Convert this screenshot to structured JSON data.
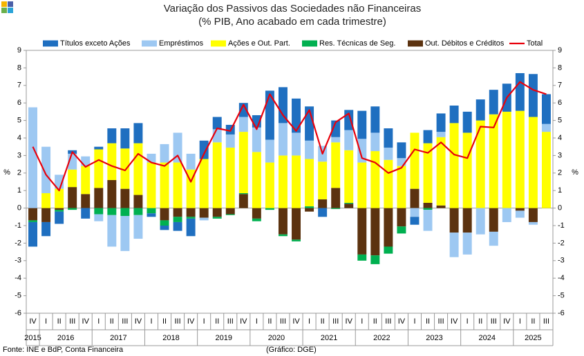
{
  "chart_data": {
    "type": "bar",
    "stacked": true,
    "title": "Variação dos Passivos das Sociedades não Financeiras",
    "subtitle": "(% PIB, Ano acabado em cada trimestre)",
    "ylabel": "%",
    "y2label": "%",
    "source": "Fonte: INE e BdP, Conta Financeira",
    "note": "(Gráfico: DGE)",
    "categories": [
      "IV",
      "I",
      "II",
      "III",
      "IV",
      "I",
      "II",
      "III",
      "IV",
      "I",
      "II",
      "III",
      "IV",
      "I",
      "II",
      "III",
      "IV",
      "I",
      "II",
      "III",
      "IV",
      "I",
      "II",
      "III",
      "IV",
      "I",
      "II",
      "III",
      "IV",
      "I",
      "II",
      "III",
      "IV",
      "I",
      "II",
      "III",
      "IV",
      "I",
      "II",
      "III"
    ],
    "category_groups": [
      {
        "name": "2015",
        "count": 1
      },
      {
        "name": "2016",
        "count": 4
      },
      {
        "name": "2017",
        "count": 4
      },
      {
        "name": "2018",
        "count": 4
      },
      {
        "name": "2019",
        "count": 4
      },
      {
        "name": "2020",
        "count": 4
      },
      {
        "name": "2021",
        "count": 4
      },
      {
        "name": "2022",
        "count": 4
      },
      {
        "name": "2023",
        "count": 4
      },
      {
        "name": "2024",
        "count": 4
      },
      {
        "name": "2025",
        "count": 3
      }
    ],
    "ylim": [
      -6,
      9
    ],
    "yticks": [
      -6,
      -5,
      -4,
      -3,
      -2,
      -1,
      0,
      1,
      2,
      3,
      4,
      5,
      6,
      7,
      8,
      9
    ],
    "y2lim": [
      -6,
      9
    ],
    "y2ticks": [
      -6,
      -5,
      -4,
      -3,
      -2,
      -1,
      0,
      1,
      2,
      3,
      4,
      5,
      6,
      7,
      8,
      9
    ],
    "legend": "top",
    "series": [
      {
        "name": "Títulos exceto Ações",
        "type": "bar",
        "color": "#1f6fc0",
        "values": [
          -1.4,
          -0.8,
          -0.7,
          0.2,
          -0.6,
          0.15,
          0.85,
          1.15,
          1.15,
          -0.2,
          -0.25,
          -0.5,
          -1.0,
          1.05,
          0.7,
          0.55,
          0.8,
          0.7,
          2.8,
          2.05,
          1.95,
          1.95,
          -0.5,
          0.95,
          1.15,
          1.6,
          1.5,
          1.1,
          0.9,
          -0.45,
          0.75,
          1.05,
          1.0,
          1.2,
          1.2,
          1.4,
          1.6,
          2.15,
          2.45,
          1.7
        ]
      },
      {
        "name": "Empréstimos",
        "type": "bar",
        "color": "#9dc8f2",
        "values": [
          5.75,
          2.65,
          0.8,
          0.9,
          0.55,
          -0.4,
          -1.8,
          -2.0,
          -1.35,
          0.5,
          1.05,
          1.7,
          0.9,
          -0.15,
          0.75,
          0.75,
          0.85,
          1.4,
          1.3,
          1.85,
          1.3,
          1.05,
          0.9,
          0.3,
          1.15,
          1.35,
          1.05,
          0.7,
          0.45,
          -0.5,
          -1.2,
          0.3,
          -1.4,
          -1.25,
          -1.5,
          -0.8,
          -0.8,
          -0.4,
          -0.15,
          0.45
        ]
      },
      {
        "name": "Ações e Out. Part.",
        "type": "bar",
        "color": "#ffff00",
        "values": [
          0,
          0.85,
          1.1,
          1.0,
          1.6,
          2.2,
          2.1,
          2.3,
          2.95,
          2.6,
          2.6,
          2.6,
          2.2,
          2.8,
          3.75,
          3.45,
          3.5,
          3.2,
          2.6,
          3.0,
          3.0,
          2.7,
          2.15,
          2.6,
          3.0,
          2.6,
          3.25,
          2.75,
          2.4,
          3.2,
          3.4,
          3.9,
          4.85,
          4.3,
          5.0,
          5.35,
          5.5,
          5.55,
          5.2,
          4.35
        ]
      },
      {
        "name": "Res. Técnicas de Seg.",
        "type": "bar",
        "color": "#00b050",
        "values": [
          -0.1,
          0,
          -0.1,
          -0.1,
          0,
          -0.35,
          -0.4,
          -0.45,
          -0.4,
          -0.3,
          -0.3,
          -0.3,
          -0.1,
          0,
          -0.1,
          -0.05,
          0.05,
          -0.15,
          -0.1,
          -0.1,
          -0.1,
          0.1,
          0,
          -0.05,
          0.05,
          -0.35,
          -0.5,
          -0.4,
          -0.4,
          0,
          -0.1,
          0,
          0,
          0,
          0,
          0,
          0,
          0,
          0,
          0
        ]
      },
      {
        "name": "Out. Débitos e Créditos",
        "type": "bar",
        "color": "#5c3310",
        "values": [
          -0.7,
          -0.8,
          -0.1,
          1.2,
          0.8,
          1.15,
          1.6,
          1.1,
          0.75,
          0,
          -0.7,
          -0.5,
          -0.5,
          -0.55,
          -0.5,
          -0.35,
          0.8,
          -0.6,
          0,
          -1.5,
          -1.8,
          -0.2,
          0.5,
          1.15,
          0.25,
          -2.65,
          -2.7,
          -2.2,
          -1.05,
          1.1,
          0.3,
          0.15,
          -1.4,
          -1.4,
          0,
          -1.35,
          0,
          -0.15,
          -0.8,
          0
        ]
      },
      {
        "name": "Total",
        "type": "line",
        "color": "#e8000b",
        "values": [
          3.5,
          1.9,
          1.0,
          3.2,
          2.35,
          2.75,
          2.4,
          2.15,
          3.1,
          2.6,
          2.4,
          3.0,
          1.5,
          3.1,
          4.55,
          4.4,
          5.9,
          4.5,
          6.5,
          5.3,
          4.4,
          5.6,
          3.1,
          4.9,
          5.4,
          2.85,
          2.6,
          2.0,
          2.3,
          3.35,
          3.15,
          3.75,
          3.05,
          2.85,
          4.65,
          4.6,
          6.3,
          7.2,
          6.75,
          6.5
        ]
      }
    ]
  }
}
